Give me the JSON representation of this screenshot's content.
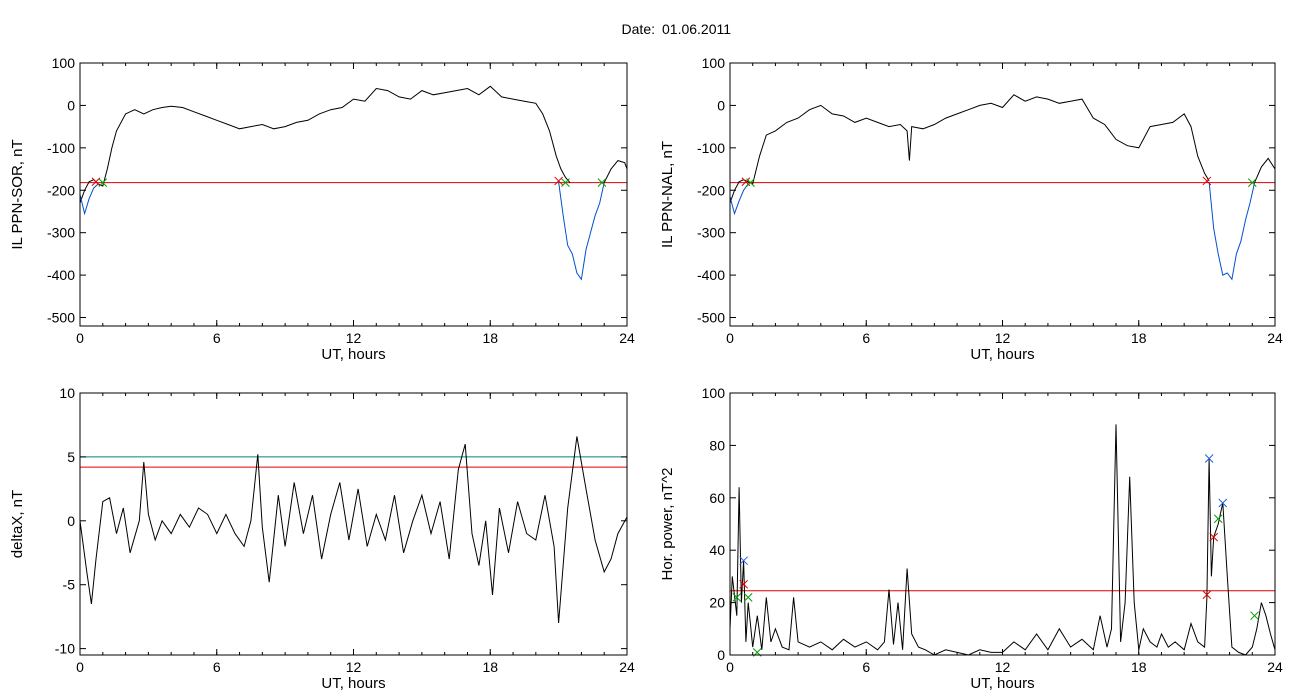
{
  "header": {
    "date_label": "Date:",
    "date_value": "01.06.2011"
  },
  "colors": {
    "trace": "#000000",
    "threshold": "#e00000",
    "substorm": "#0050d0",
    "teal_line": "#008080",
    "green_marker": "#00a000",
    "blue_marker": "#2060e0"
  },
  "chart_data": [
    {
      "id": "il_sor",
      "type": "line",
      "title": "",
      "xlabel": "UT, hours",
      "ylabel": "IL PPN-SOR, nT",
      "xlim": [
        0,
        24
      ],
      "ylim": [
        -520,
        100
      ],
      "xticks": [
        0,
        6,
        12,
        18,
        24
      ],
      "yticks": [
        -500,
        -400,
        -300,
        -200,
        -100,
        0,
        100
      ],
      "hlines": [
        {
          "y": -182,
          "color": "#e00000"
        }
      ],
      "series": [
        {
          "color": "#000000",
          "x": [
            0,
            0.2,
            0.4,
            0.6,
            0.8,
            1.0,
            1.2,
            1.4,
            1.6,
            2.0,
            2.4,
            2.8,
            3.2,
            3.6,
            4.0,
            4.5,
            5.0,
            5.5,
            6.0,
            6.5,
            7.0,
            7.5,
            8.0,
            8.5,
            9.0,
            9.5,
            10.0,
            10.5,
            11.0,
            11.5,
            12.0,
            12.5,
            13.0,
            13.5,
            14.0,
            14.5,
            15.0,
            15.5,
            16.0,
            16.5,
            17.0,
            17.5,
            18.0,
            18.5,
            19.0,
            19.5,
            20.0,
            20.3,
            20.6,
            20.9,
            21.1,
            21.3,
            21.5
          ],
          "y": [
            -230,
            -200,
            -180,
            -175,
            -185,
            -190,
            -150,
            -100,
            -60,
            -20,
            -10,
            -20,
            -10,
            -5,
            -2,
            -5,
            -15,
            -25,
            -35,
            -45,
            -55,
            -50,
            -45,
            -55,
            -50,
            -40,
            -35,
            -20,
            -10,
            -5,
            15,
            10,
            40,
            35,
            20,
            15,
            35,
            25,
            30,
            35,
            40,
            25,
            45,
            20,
            15,
            10,
            5,
            -20,
            -60,
            -120,
            -150,
            -170,
            -182
          ]
        },
        {
          "color": "#0050d0",
          "x": [
            0,
            0.2,
            0.4,
            0.6,
            0.8
          ],
          "y": [
            -210,
            -255,
            -220,
            -195,
            -185
          ]
        },
        {
          "color": "#0050d0",
          "x": [
            21.0,
            21.2,
            21.4,
            21.6,
            21.8,
            22.0,
            22.2,
            22.4,
            22.6,
            22.8,
            23.0
          ],
          "y": [
            -180,
            -260,
            -330,
            -350,
            -395,
            -410,
            -340,
            -300,
            -260,
            -230,
            -182
          ]
        },
        {
          "color": "#000000",
          "x": [
            23.0,
            23.3,
            23.6,
            23.9,
            24.0
          ],
          "y": [
            -182,
            -150,
            -130,
            -135,
            -150
          ]
        }
      ],
      "markers": [
        {
          "x": 0.7,
          "y": -180,
          "color": "#e00000"
        },
        {
          "x": 1.0,
          "y": -182,
          "color": "#00a000"
        },
        {
          "x": 21.0,
          "y": -178,
          "color": "#e00000"
        },
        {
          "x": 21.3,
          "y": -182,
          "color": "#00a000"
        },
        {
          "x": 22.9,
          "y": -182,
          "color": "#00a000"
        }
      ]
    },
    {
      "id": "il_nal",
      "type": "line",
      "title": "",
      "xlabel": "UT, hours",
      "ylabel": "IL PPN-NAL, nT",
      "xlim": [
        0,
        24
      ],
      "ylim": [
        -520,
        100
      ],
      "xticks": [
        0,
        6,
        12,
        18,
        24
      ],
      "yticks": [
        -500,
        -400,
        -300,
        -200,
        -100,
        0,
        100
      ],
      "hlines": [
        {
          "y": -182,
          "color": "#e00000"
        }
      ],
      "series": [
        {
          "color": "#000000",
          "x": [
            0,
            0.2,
            0.4,
            0.6,
            0.8,
            1.0,
            1.3,
            1.6,
            2.0,
            2.5,
            3.0,
            3.5,
            4.0,
            4.5,
            5.0,
            5.5,
            6.0,
            6.5,
            7.0,
            7.5,
            7.8,
            7.9,
            8.0,
            8.5,
            9.0,
            9.5,
            10.0,
            10.5,
            11.0,
            11.5,
            12.0,
            12.5,
            13.0,
            13.5,
            14.0,
            14.5,
            15.0,
            15.5,
            16.0,
            16.5,
            17.0,
            17.5,
            18.0,
            18.5,
            19.0,
            19.5,
            20.0,
            20.3,
            20.6,
            20.9,
            21.1
          ],
          "y": [
            -230,
            -200,
            -180,
            -175,
            -180,
            -185,
            -120,
            -70,
            -60,
            -40,
            -30,
            -10,
            0,
            -20,
            -25,
            -40,
            -30,
            -40,
            -50,
            -45,
            -60,
            -130,
            -50,
            -55,
            -45,
            -30,
            -20,
            -10,
            0,
            5,
            -5,
            25,
            10,
            20,
            15,
            5,
            10,
            15,
            -30,
            -45,
            -80,
            -95,
            -100,
            -50,
            -45,
            -40,
            -20,
            -50,
            -120,
            -160,
            -178
          ]
        },
        {
          "color": "#0050d0",
          "x": [
            0,
            0.2,
            0.4,
            0.6,
            0.8
          ],
          "y": [
            -215,
            -255,
            -225,
            -200,
            -185
          ]
        },
        {
          "color": "#0050d0",
          "x": [
            21.1,
            21.3,
            21.5,
            21.7,
            21.9,
            22.1,
            22.3,
            22.5,
            22.7,
            22.9,
            23.1
          ],
          "y": [
            -180,
            -290,
            -350,
            -400,
            -395,
            -410,
            -350,
            -320,
            -270,
            -230,
            -182
          ]
        },
        {
          "color": "#000000",
          "x": [
            23.1,
            23.4,
            23.7,
            24.0
          ],
          "y": [
            -182,
            -145,
            -125,
            -150
          ]
        }
      ],
      "markers": [
        {
          "x": 0.7,
          "y": -180,
          "color": "#e00000"
        },
        {
          "x": 0.9,
          "y": -182,
          "color": "#00a000"
        },
        {
          "x": 21.0,
          "y": -178,
          "color": "#e00000"
        },
        {
          "x": 23.0,
          "y": -182,
          "color": "#00a000"
        }
      ]
    },
    {
      "id": "deltax",
      "type": "line",
      "title": "",
      "xlabel": "UT, hours",
      "ylabel": "deltaX, nT",
      "xlim": [
        0,
        24
      ],
      "ylim": [
        -10.5,
        10
      ],
      "xticks": [
        0,
        6,
        12,
        18,
        24
      ],
      "yticks": [
        -10,
        -5,
        0,
        5,
        10
      ],
      "hlines": [
        {
          "y": 5.0,
          "color": "#008080"
        },
        {
          "y": 4.2,
          "color": "#e00000"
        }
      ],
      "series": [
        {
          "color": "#000000",
          "x": [
            0,
            0.3,
            0.5,
            0.7,
            1.0,
            1.3,
            1.6,
            1.9,
            2.2,
            2.6,
            2.8,
            3.0,
            3.3,
            3.6,
            4.0,
            4.4,
            4.8,
            5.2,
            5.6,
            6.0,
            6.4,
            6.8,
            7.2,
            7.5,
            7.8,
            8.0,
            8.3,
            8.7,
            9.0,
            9.4,
            9.8,
            10.2,
            10.6,
            11.0,
            11.4,
            11.8,
            12.2,
            12.6,
            13.0,
            13.4,
            13.8,
            14.2,
            14.6,
            15.0,
            15.4,
            15.8,
            16.2,
            16.6,
            16.9,
            17.2,
            17.5,
            17.8,
            18.1,
            18.4,
            18.8,
            19.2,
            19.6,
            20.0,
            20.4,
            20.8,
            21.0,
            21.4,
            21.8,
            22.2,
            22.6,
            23.0,
            23.3,
            23.6,
            24.0
          ],
          "y": [
            0,
            -4,
            -6.5,
            -3,
            1.5,
            1.8,
            -1,
            1,
            -2.5,
            0,
            4.6,
            0.5,
            -1.5,
            0,
            -1,
            0.5,
            -0.5,
            1,
            0.5,
            -1,
            0.5,
            -1,
            -2,
            0,
            5.2,
            -0.5,
            -4.8,
            2,
            -2,
            3,
            -1,
            2,
            -3,
            0.5,
            3,
            -1.5,
            2.5,
            -2,
            0.5,
            -1.5,
            2,
            -2.5,
            0,
            2,
            -1,
            1.5,
            -3,
            4,
            6,
            -1,
            -3.5,
            0,
            -5.8,
            1,
            -2.5,
            1.5,
            -1,
            -1.5,
            2,
            -2,
            -8,
            1,
            6.6,
            2.5,
            -1.5,
            -4,
            -3,
            -1,
            0.3
          ]
        }
      ],
      "markers": []
    },
    {
      "id": "hor_power",
      "type": "line",
      "title": "",
      "xlabel": "UT, hours",
      "ylabel": "Hor. power, nT^2",
      "xlim": [
        0,
        24
      ],
      "ylim": [
        0,
        100
      ],
      "xticks": [
        0,
        6,
        12,
        18,
        24
      ],
      "yticks": [
        0,
        20,
        40,
        60,
        80,
        100
      ],
      "hlines": [
        {
          "y": 24.5,
          "color": "#e00000"
        }
      ],
      "series": [
        {
          "color": "#000000",
          "x": [
            0,
            0.1,
            0.3,
            0.4,
            0.5,
            0.6,
            0.7,
            0.8,
            0.9,
            1.0,
            1.2,
            1.4,
            1.6,
            1.8,
            2.0,
            2.3,
            2.6,
            2.8,
            3.0,
            3.5,
            4.0,
            4.5,
            5.0,
            5.5,
            6.0,
            6.5,
            6.8,
            7.0,
            7.2,
            7.4,
            7.6,
            7.8,
            8.0,
            8.3,
            8.6,
            9.0,
            9.5,
            10.0,
            10.5,
            11.0,
            11.5,
            12.0,
            12.5,
            13.0,
            13.5,
            14.0,
            14.5,
            15.0,
            15.5,
            16.0,
            16.3,
            16.6,
            16.8,
            17.0,
            17.2,
            17.4,
            17.6,
            17.8,
            18.0,
            18.2,
            18.5,
            18.8,
            19.0,
            19.3,
            19.6,
            20.0,
            20.3,
            20.6,
            20.9,
            21.0,
            21.1,
            21.2,
            21.3,
            21.5,
            21.7,
            21.9,
            22.1,
            22.4,
            22.7,
            23.0,
            23.2,
            23.4,
            23.6,
            23.8,
            24.0
          ],
          "y": [
            10,
            30,
            15,
            64,
            20,
            36,
            5,
            20,
            12,
            3,
            15,
            2,
            22,
            5,
            10,
            3,
            2,
            22,
            5,
            3,
            5,
            2,
            6,
            3,
            5,
            2,
            5,
            25,
            4,
            20,
            2,
            33,
            8,
            3,
            2,
            0,
            2,
            1,
            0,
            2,
            1,
            1,
            5,
            2,
            8,
            2,
            10,
            3,
            6,
            2,
            15,
            3,
            10,
            88,
            5,
            20,
            68,
            20,
            2,
            10,
            5,
            3,
            8,
            3,
            5,
            2,
            12,
            5,
            3,
            22,
            75,
            30,
            45,
            50,
            58,
            30,
            3,
            1,
            0,
            3,
            10,
            20,
            15,
            8,
            2
          ]
        }
      ],
      "markers": [
        {
          "x": 0.3,
          "y": 22,
          "color": "#00a000"
        },
        {
          "x": 0.6,
          "y": 36,
          "color": "#2060e0"
        },
        {
          "x": 0.6,
          "y": 27,
          "color": "#e00000"
        },
        {
          "x": 0.8,
          "y": 22,
          "color": "#00a000"
        },
        {
          "x": 1.2,
          "y": 1,
          "color": "#00a000"
        },
        {
          "x": 21.0,
          "y": 23,
          "color": "#e00000"
        },
        {
          "x": 21.1,
          "y": 75,
          "color": "#2060e0"
        },
        {
          "x": 21.3,
          "y": 45,
          "color": "#e00000"
        },
        {
          "x": 21.5,
          "y": 52,
          "color": "#00a000"
        },
        {
          "x": 21.7,
          "y": 58,
          "color": "#2060e0"
        },
        {
          "x": 23.1,
          "y": 15,
          "color": "#00a000"
        }
      ]
    }
  ]
}
